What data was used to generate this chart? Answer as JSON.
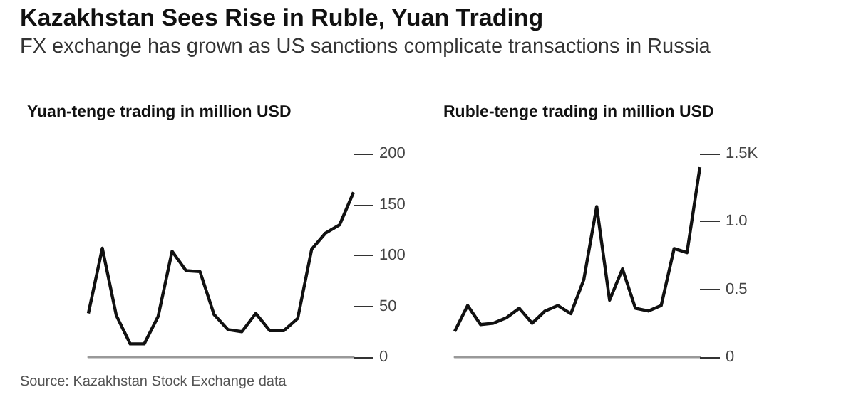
{
  "chart_data": [
    {
      "type": "line",
      "title": "Kazakhstan Sees Rise in Ruble, Yuan Trading",
      "subtitle": "FX exchange has grown as US sanctions complicate transactions in Russia",
      "ylabel": "Yuan-tenge trading in million USD",
      "annotations": [
        "Source: Kazakhstan Stock Exchange data"
      ],
      "categories": [
        null,
        null,
        null,
        null,
        null,
        null,
        null,
        null,
        null,
        null,
        null,
        null,
        null,
        null,
        null,
        null,
        null,
        null,
        null,
        null
      ],
      "values": [
        43,
        107,
        41,
        13,
        13,
        40,
        104,
        85,
        84,
        42,
        27,
        25,
        43,
        26,
        26,
        38,
        106,
        122,
        130,
        162
      ],
      "color": "#111111",
      "marker": "none",
      "ylim": [
        0,
        200
      ],
      "yticks": [
        0,
        50,
        100,
        150,
        200
      ]
    },
    {
      "type": "line",
      "ylabel": "Ruble-tenge trading in million USD",
      "categories": [
        null,
        null,
        null,
        null,
        null,
        null,
        null,
        null,
        null,
        null,
        null,
        null,
        null,
        null,
        null,
        null,
        null,
        null,
        null,
        null
      ],
      "values": [
        0.19,
        0.38,
        0.24,
        0.25,
        0.29,
        0.36,
        0.25,
        0.34,
        0.38,
        0.32,
        0.57,
        1.11,
        0.42,
        0.65,
        0.36,
        0.34,
        0.38,
        0.8,
        0.77,
        1.4
      ],
      "color": "#111111",
      "marker": "none",
      "ylim": [
        0,
        1.5
      ],
      "yticks": [
        0,
        0.5,
        {
          "value": 1.0,
          "label": "1.0"
        },
        {
          "value": 1.5,
          "label": "1.5K"
        }
      ]
    }
  ]
}
